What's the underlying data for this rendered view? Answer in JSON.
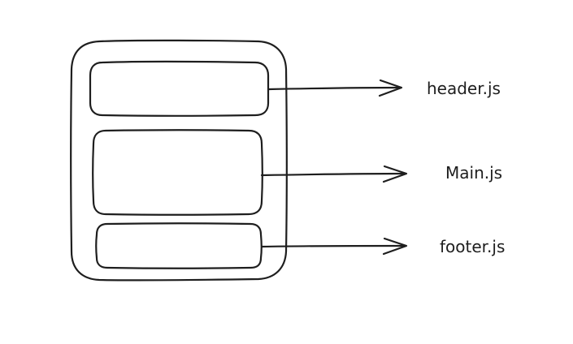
{
  "diagram": {
    "labels": {
      "header": "header.js",
      "main": "Main.js",
      "footer": "footer.js"
    },
    "colors": {
      "stroke": "#1e1e1e",
      "background": "#ffffff"
    }
  }
}
